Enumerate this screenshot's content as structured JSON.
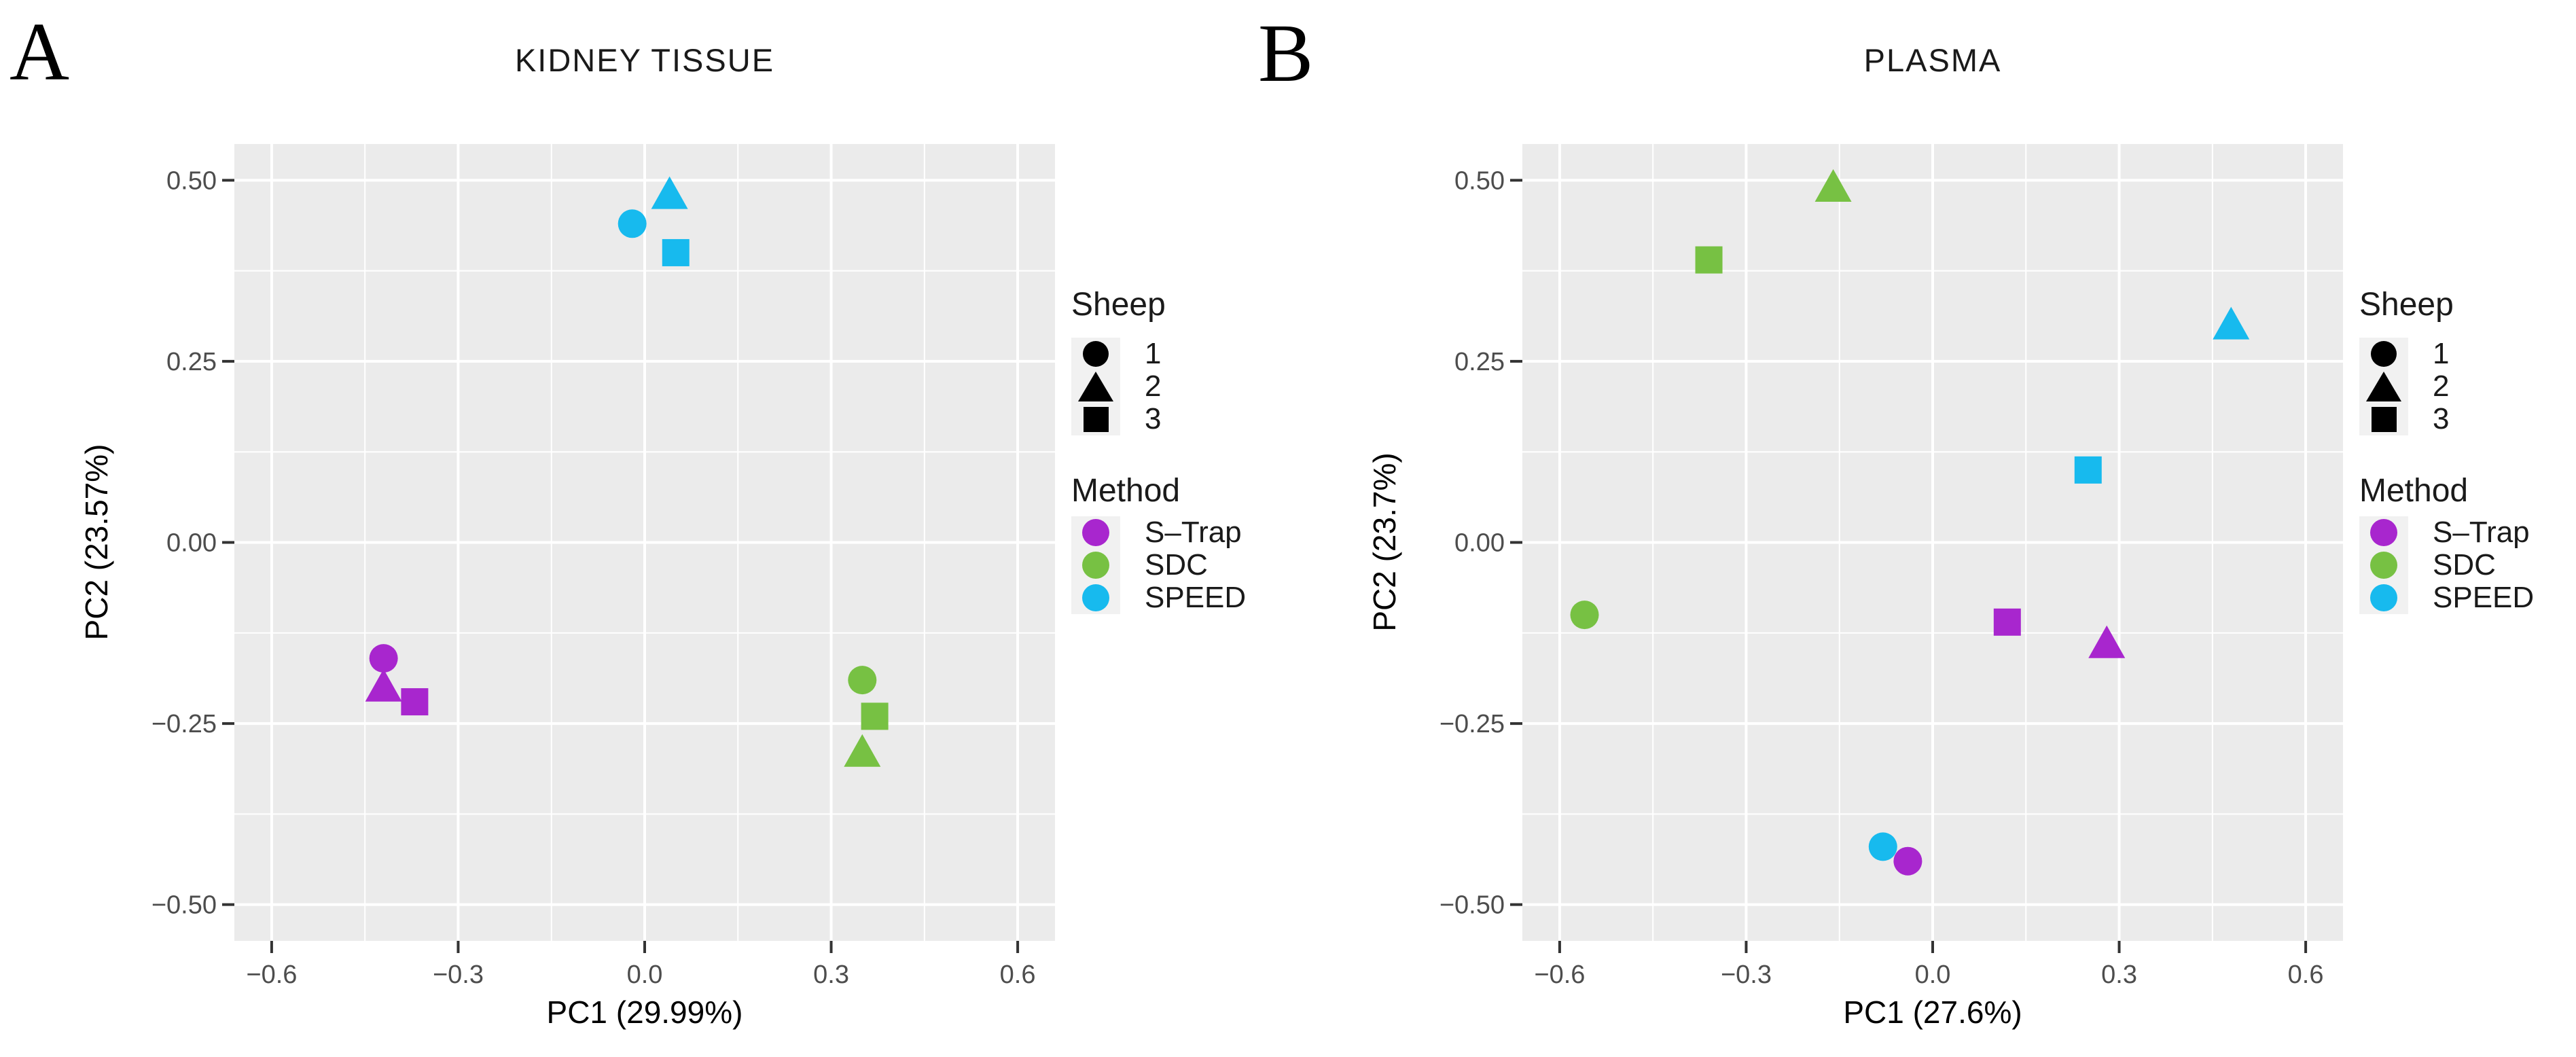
{
  "palette": {
    "background": "#FFFFFF",
    "panel_bg": "#EBEBEB",
    "grid": "#FFFFFF",
    "tick_mark": "#333333",
    "tick_label": "#4D4D4D",
    "text": "#1A1A1A",
    "legend_key_bg": "#F1F1F1",
    "strap_purple": "#A826CE",
    "sdc_green": "#77C143",
    "speed_blue": "#17BAEE"
  },
  "panels": [
    {
      "letter": "A",
      "title": "KIDNEY TISSUE",
      "xlabel": "PC1 (29.99%)",
      "ylabel": "PC2 (23.57%)"
    },
    {
      "letter": "B",
      "title": "PLASMA",
      "xlabel": "PC1 (27.6%)",
      "ylabel": "PC2 (23.7%)"
    }
  ],
  "legend": {
    "sheep_title": "Sheep",
    "sheep_items": [
      {
        "shape": "circle",
        "label": "1"
      },
      {
        "shape": "triangle",
        "label": "2"
      },
      {
        "shape": "square",
        "label": "3"
      }
    ],
    "method_title": "Method",
    "method_items": [
      {
        "label": "S–Trap",
        "color": "#A826CE"
      },
      {
        "label": "SDC",
        "color": "#77C143"
      },
      {
        "label": "SPEED",
        "color": "#17BAEE"
      }
    ]
  },
  "chart_data": [
    {
      "type": "scatter",
      "title": "KIDNEY TISSUE",
      "xlabel": "PC1 (29.99%)",
      "ylabel": "PC2 (23.57%)",
      "xlim": [
        -0.66,
        0.66
      ],
      "ylim": [
        -0.55,
        0.55
      ],
      "x_ticks": [
        -0.6,
        -0.3,
        0.0,
        0.3,
        0.6
      ],
      "x_tick_labels": [
        "−0.6",
        "−0.3",
        "0.0",
        "0.3",
        "0.6"
      ],
      "y_ticks": [
        0.5,
        0.25,
        0.0,
        -0.25,
        -0.5
      ],
      "y_tick_labels": [
        "0.50",
        "0.25",
        "0.00",
        "−0.25",
        "−0.50"
      ],
      "x_minor": [
        -0.45,
        -0.15,
        0.15,
        0.45
      ],
      "y_minor": [
        -0.375,
        -0.125,
        0.125,
        0.375
      ],
      "grid": true,
      "legend_position": "right",
      "series": [
        {
          "name": "S–Trap",
          "color": "#A826CE",
          "points": [
            {
              "sheep": "1",
              "shape": "circle",
              "x": -0.42,
              "y": -0.16
            },
            {
              "sheep": "2",
              "shape": "triangle",
              "x": -0.42,
              "y": -0.2
            },
            {
              "sheep": "3",
              "shape": "square",
              "x": -0.37,
              "y": -0.22
            }
          ]
        },
        {
          "name": "SDC",
          "color": "#77C143",
          "points": [
            {
              "sheep": "1",
              "shape": "circle",
              "x": 0.35,
              "y": -0.19
            },
            {
              "sheep": "2",
              "shape": "triangle",
              "x": 0.35,
              "y": -0.29
            },
            {
              "sheep": "3",
              "shape": "square",
              "x": 0.37,
              "y": -0.24
            }
          ]
        },
        {
          "name": "SPEED",
          "color": "#17BAEE",
          "points": [
            {
              "sheep": "1",
              "shape": "circle",
              "x": -0.02,
              "y": 0.44
            },
            {
              "sheep": "2",
              "shape": "triangle",
              "x": 0.04,
              "y": 0.48
            },
            {
              "sheep": "3",
              "shape": "square",
              "x": 0.05,
              "y": 0.4
            }
          ]
        }
      ]
    },
    {
      "type": "scatter",
      "title": "PLASMA",
      "xlabel": "PC1 (27.6%)",
      "ylabel": "PC2 (23.7%)",
      "xlim": [
        -0.66,
        0.66
      ],
      "ylim": [
        -0.55,
        0.55
      ],
      "x_ticks": [
        -0.6,
        -0.3,
        0.0,
        0.3,
        0.6
      ],
      "x_tick_labels": [
        "−0.6",
        "−0.3",
        "0.0",
        "0.3",
        "0.6"
      ],
      "y_ticks": [
        0.5,
        0.25,
        0.0,
        -0.25,
        -0.5
      ],
      "y_tick_labels": [
        "0.50",
        "0.25",
        "0.00",
        "−0.25",
        "−0.50"
      ],
      "x_minor": [
        -0.45,
        -0.15,
        0.15,
        0.45
      ],
      "y_minor": [
        -0.375,
        -0.125,
        0.125,
        0.375
      ],
      "grid": true,
      "legend_position": "right",
      "series": [
        {
          "name": "S–Trap",
          "color": "#A826CE",
          "points": [
            {
              "sheep": "1",
              "shape": "circle",
              "x": -0.04,
              "y": -0.44
            },
            {
              "sheep": "2",
              "shape": "triangle",
              "x": 0.28,
              "y": -0.14
            },
            {
              "sheep": "3",
              "shape": "square",
              "x": 0.12,
              "y": -0.11
            }
          ]
        },
        {
          "name": "SDC",
          "color": "#77C143",
          "points": [
            {
              "sheep": "1",
              "shape": "circle",
              "x": -0.56,
              "y": -0.1
            },
            {
              "sheep": "2",
              "shape": "triangle",
              "x": -0.16,
              "y": 0.49
            },
            {
              "sheep": "3",
              "shape": "square",
              "x": -0.36,
              "y": 0.39
            }
          ]
        },
        {
          "name": "SPEED",
          "color": "#17BAEE",
          "points": [
            {
              "sheep": "1",
              "shape": "circle",
              "x": -0.08,
              "y": -0.42
            },
            {
              "sheep": "2",
              "shape": "triangle",
              "x": 0.48,
              "y": 0.3
            },
            {
              "sheep": "3",
              "shape": "square",
              "x": 0.25,
              "y": 0.1
            }
          ]
        }
      ]
    }
  ]
}
